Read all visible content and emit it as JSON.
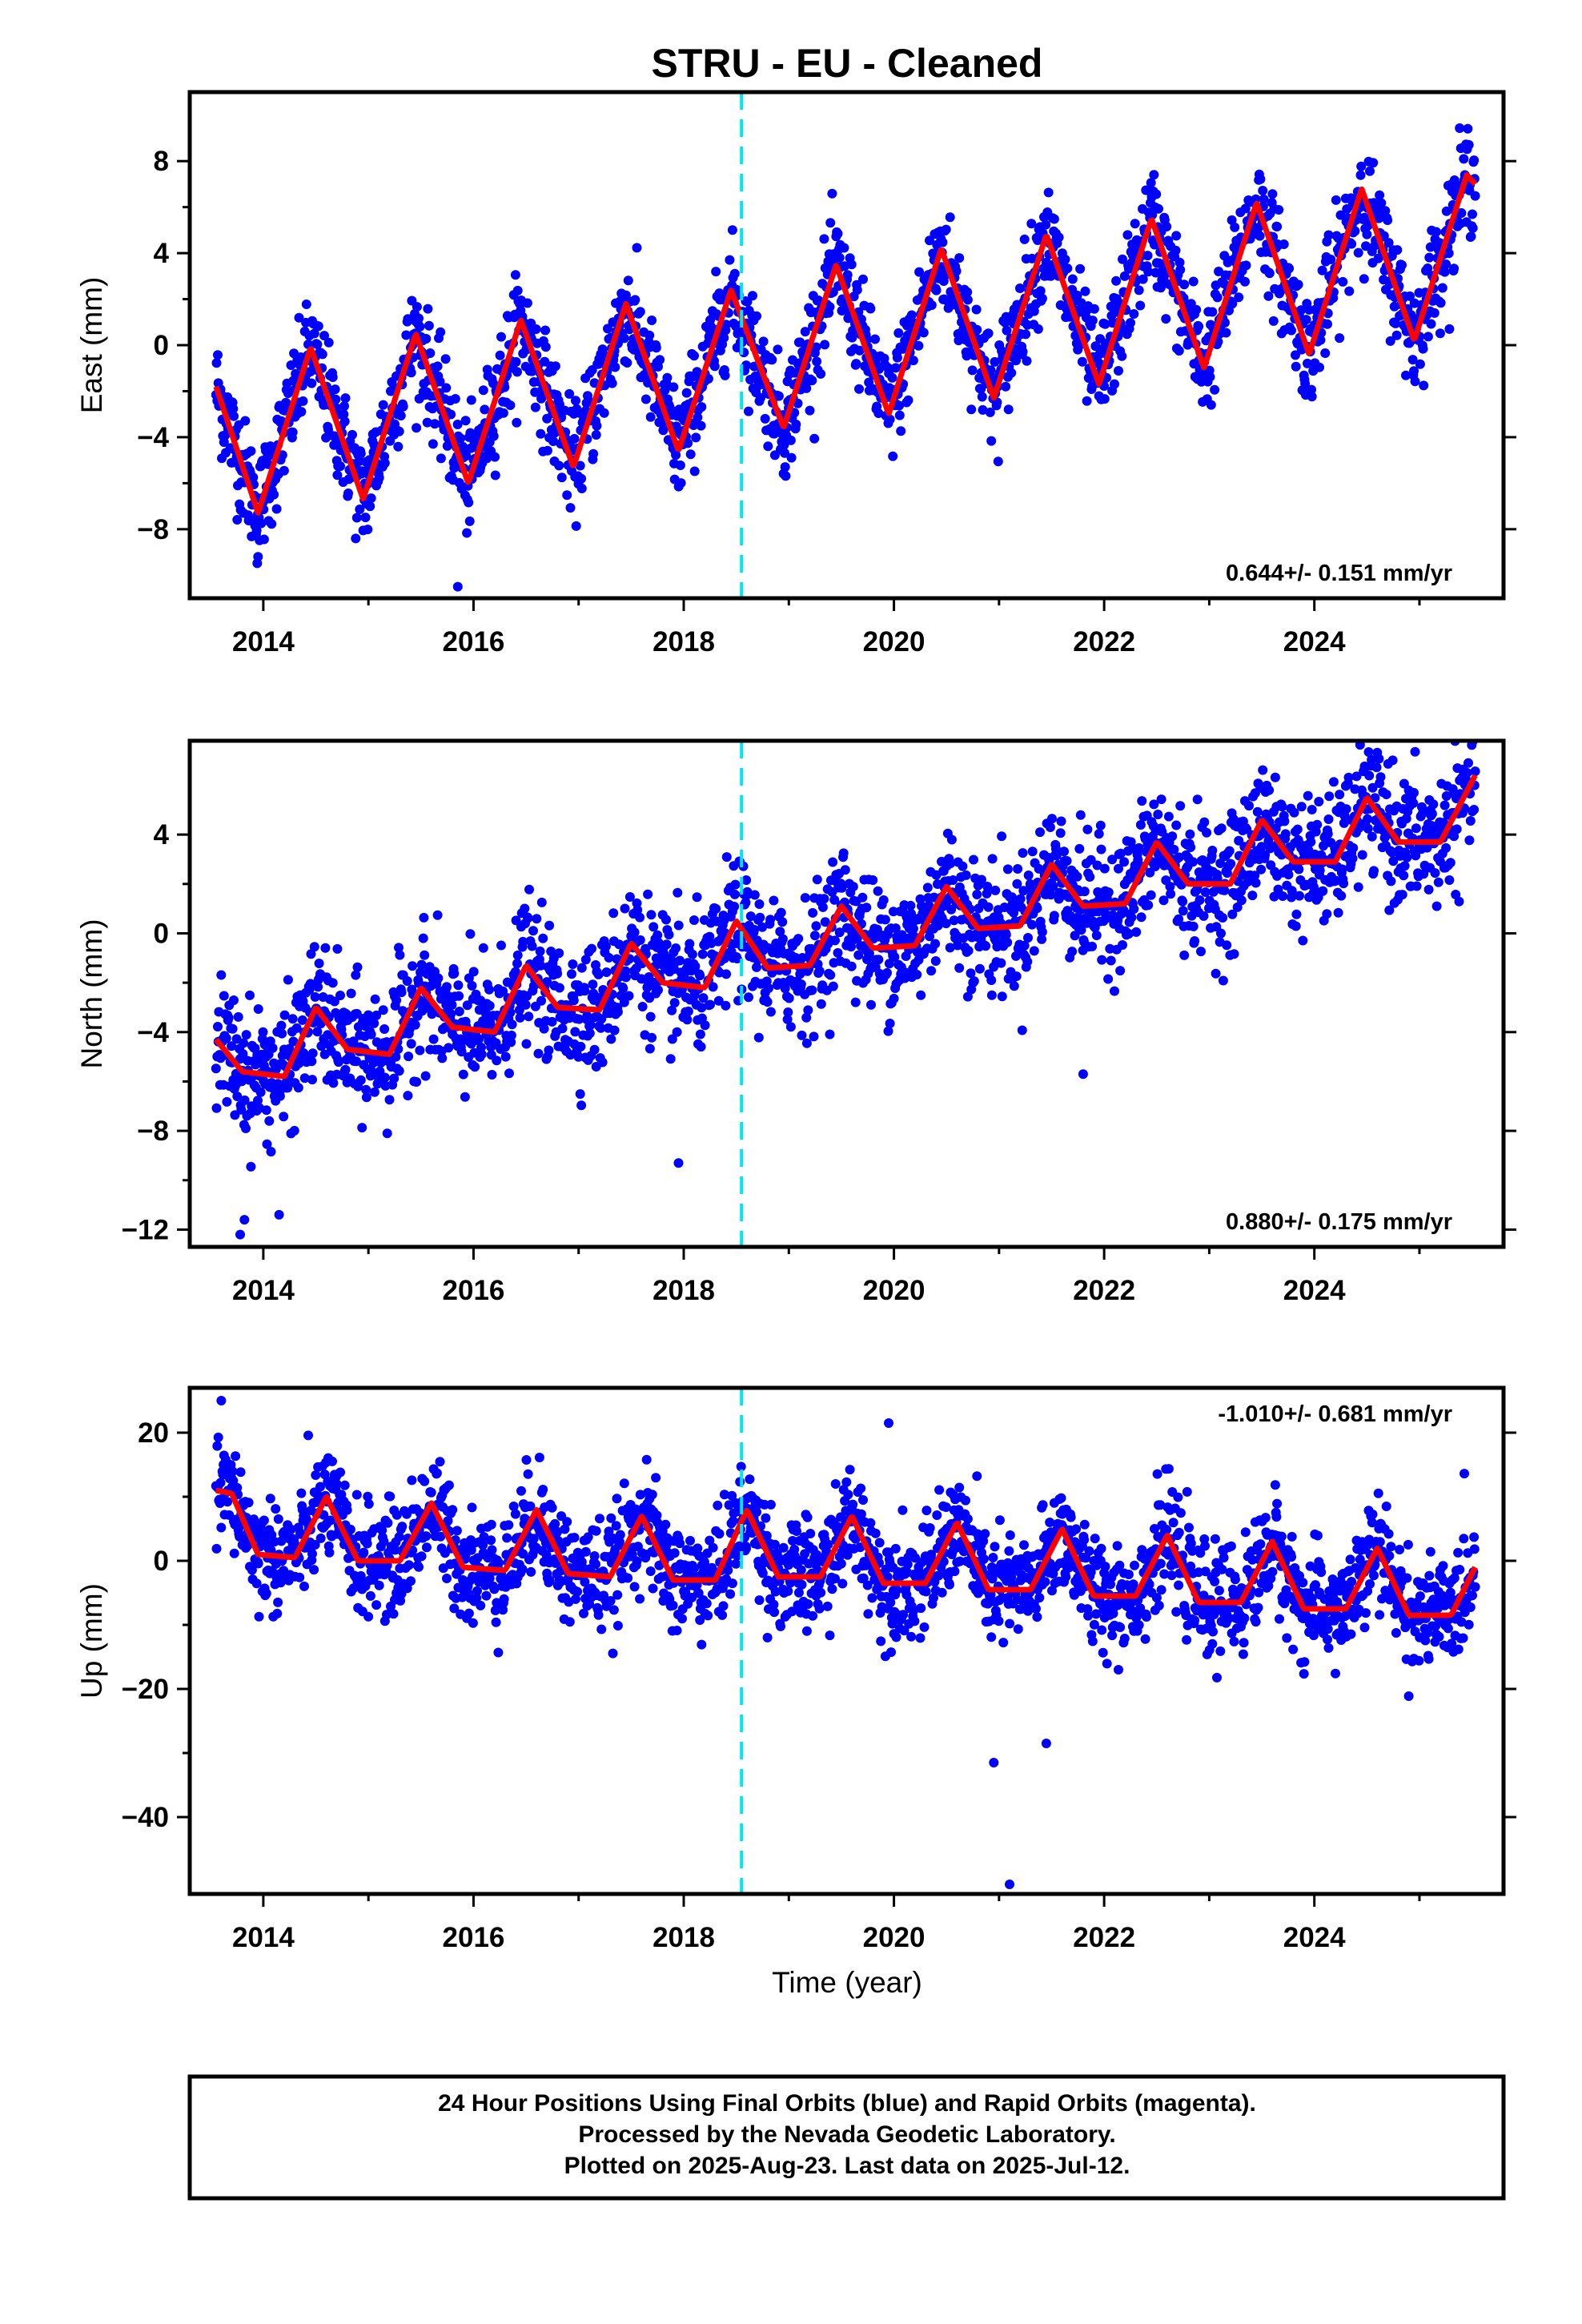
{
  "title": "STRU  - EU - Cleaned",
  "xlabel": "Time (year)",
  "footer": [
    "24 Hour Positions Using Final Orbits (blue) and Rapid Orbits (magenta).",
    "Processed by the Nevada Geodetic Laboratory.",
    "Plotted on 2025-Aug-23. Last data on 2025-Jul-12."
  ],
  "colors": {
    "points": "#0000ff",
    "fit": "#ff0000",
    "marker_line": "#00e5ee",
    "axis": "#000000"
  },
  "chart_data": [
    {
      "type": "scatter",
      "title": "STRU  - EU - Cleaned",
      "ylabel": "East (mm)",
      "xlim": [
        2013.3,
        2025.8
      ],
      "ylim": [
        -11,
        11
      ],
      "xticks": [
        2014,
        2016,
        2018,
        2020,
        2022,
        2024
      ],
      "yticks": [
        -8,
        -4,
        0,
        4,
        8
      ],
      "ytick_labels": [
        "−8",
        "−4",
        "0",
        "4",
        "8"
      ],
      "rate_label": "0.644+/- 0.151 mm/yr",
      "rate_position": "bottom-right",
      "marker_line_x": 2018.55,
      "series": [
        {
          "kind": "points",
          "x_start": 2013.55,
          "x_end": 2025.53,
          "trend_start": -2.0,
          "trend_slope": 0.72,
          "annual_amplitude": 3.6,
          "noise_sd": 1.15,
          "outliers": [
            [
              2015.85,
              -10.5
            ],
            [
              2013.95,
              -9.2
            ]
          ]
        },
        {
          "kind": "fit",
          "x": [
            2013.55,
            2013.95,
            2014.45,
            2014.95,
            2015.45,
            2015.95,
            2016.45,
            2016.95,
            2017.45,
            2017.95,
            2018.45,
            2018.95,
            2019.45,
            2019.95,
            2020.45,
            2020.95,
            2021.45,
            2021.95,
            2022.45,
            2022.95,
            2023.45,
            2023.95,
            2024.45,
            2024.95,
            2025.45,
            2025.53
          ],
          "y": [
            -1.8,
            -7.3,
            -0.1,
            -6.7,
            0.5,
            -6.0,
            1.1,
            -5.3,
            1.8,
            -4.6,
            2.4,
            -3.6,
            3.5,
            -3.0,
            4.2,
            -2.3,
            4.8,
            -1.7,
            5.5,
            -1.0,
            6.2,
            -0.4,
            6.8,
            0.2,
            7.4,
            7.0
          ]
        }
      ]
    },
    {
      "type": "scatter",
      "ylabel": "North (mm)",
      "xlim": [
        2013.3,
        2025.8
      ],
      "ylim": [
        -12.7,
        7.8
      ],
      "xticks": [
        2014,
        2016,
        2018,
        2020,
        2022,
        2024
      ],
      "yticks": [
        -12,
        -8,
        -4,
        0,
        4
      ],
      "ytick_labels": [
        "−12",
        "−8",
        "−4",
        "0",
        "4"
      ],
      "rate_label": "0.880+/- 0.175 mm/yr",
      "rate_position": "bottom-right",
      "marker_line_x": 2018.55,
      "series": [
        {
          "kind": "points",
          "x_start": 2013.55,
          "x_end": 2025.53,
          "trend_start": -5.2,
          "trend_slope": 0.8,
          "annual_amplitude": 1.1,
          "noise_sd": 1.3,
          "outliers": [
            [
              2013.78,
              -12.2
            ],
            [
              2013.82,
              -11.6
            ],
            [
              2014.15,
              -11.4
            ],
            [
              2017.95,
              -9.3
            ],
            [
              2021.8,
              -5.7
            ]
          ]
        },
        {
          "kind": "fit",
          "x": [
            2013.55,
            2013.8,
            2014.2,
            2014.5,
            2014.8,
            2015.2,
            2015.5,
            2015.8,
            2016.2,
            2016.5,
            2016.8,
            2017.2,
            2017.5,
            2017.8,
            2018.2,
            2018.5,
            2018.8,
            2019.2,
            2019.5,
            2019.8,
            2020.2,
            2020.5,
            2020.8,
            2021.2,
            2021.5,
            2021.8,
            2022.2,
            2022.5,
            2022.8,
            2023.2,
            2023.5,
            2023.8,
            2024.2,
            2024.5,
            2024.8,
            2025.2,
            2025.53
          ],
          "y": [
            -4.3,
            -5.6,
            -5.8,
            -3.0,
            -4.7,
            -4.9,
            -2.2,
            -3.8,
            -4.0,
            -1.3,
            -3.0,
            -3.1,
            -0.4,
            -2.0,
            -2.2,
            0.5,
            -1.4,
            -1.3,
            1.1,
            -0.6,
            -0.5,
            1.9,
            0.2,
            0.3,
            2.8,
            1.1,
            1.2,
            3.7,
            2.0,
            2.0,
            4.6,
            2.9,
            2.9,
            5.5,
            3.7,
            3.7,
            6.4
          ]
        }
      ]
    },
    {
      "type": "scatter",
      "ylabel": "Up (mm)",
      "xlim": [
        2013.3,
        2025.8
      ],
      "ylim": [
        -52,
        27
      ],
      "xticks": [
        2014,
        2016,
        2018,
        2020,
        2022,
        2024
      ],
      "yticks": [
        -40,
        -20,
        0,
        20
      ],
      "ytick_labels": [
        "−40",
        "−20",
        "0",
        "20"
      ],
      "rate_label": "-1.010+/- 0.681 mm/yr",
      "rate_position": "top-right",
      "marker_line_x": 2018.55,
      "series": [
        {
          "kind": "points",
          "x_start": 2013.55,
          "x_end": 2025.53,
          "trend_start": 3.0,
          "trend_slope": -1.01,
          "annual_amplitude": 5.0,
          "noise_sd": 4.2,
          "outliers": [
            [
              2013.6,
              25.0
            ],
            [
              2019.95,
              21.5
            ],
            [
              2021.1,
              -50.5
            ],
            [
              2020.95,
              -31.5
            ],
            [
              2021.45,
              -28.5
            ]
          ]
        },
        {
          "kind": "fit",
          "x": [
            2013.55,
            2013.7,
            2013.95,
            2014.3,
            2014.6,
            2014.9,
            2015.3,
            2015.6,
            2015.9,
            2016.3,
            2016.6,
            2016.9,
            2017.3,
            2017.6,
            2017.9,
            2018.3,
            2018.6,
            2018.9,
            2019.3,
            2019.6,
            2019.9,
            2020.3,
            2020.6,
            2020.9,
            2021.3,
            2021.6,
            2021.9,
            2022.3,
            2022.6,
            2022.9,
            2023.3,
            2023.6,
            2023.9,
            2024.3,
            2024.6,
            2024.9,
            2025.3,
            2025.53
          ],
          "y": [
            11.0,
            10.5,
            1.0,
            0.5,
            10.0,
            0.0,
            0.0,
            9.0,
            -1.0,
            -1.5,
            8.0,
            -2.0,
            -2.5,
            7.0,
            -3.0,
            -3.0,
            8.0,
            -2.5,
            -2.5,
            7.0,
            -3.5,
            -3.5,
            6.0,
            -4.5,
            -4.5,
            5.0,
            -5.5,
            -5.5,
            4.0,
            -6.5,
            -6.5,
            3.0,
            -7.5,
            -7.5,
            2.0,
            -8.5,
            -8.5,
            -1.0
          ]
        }
      ]
    }
  ]
}
